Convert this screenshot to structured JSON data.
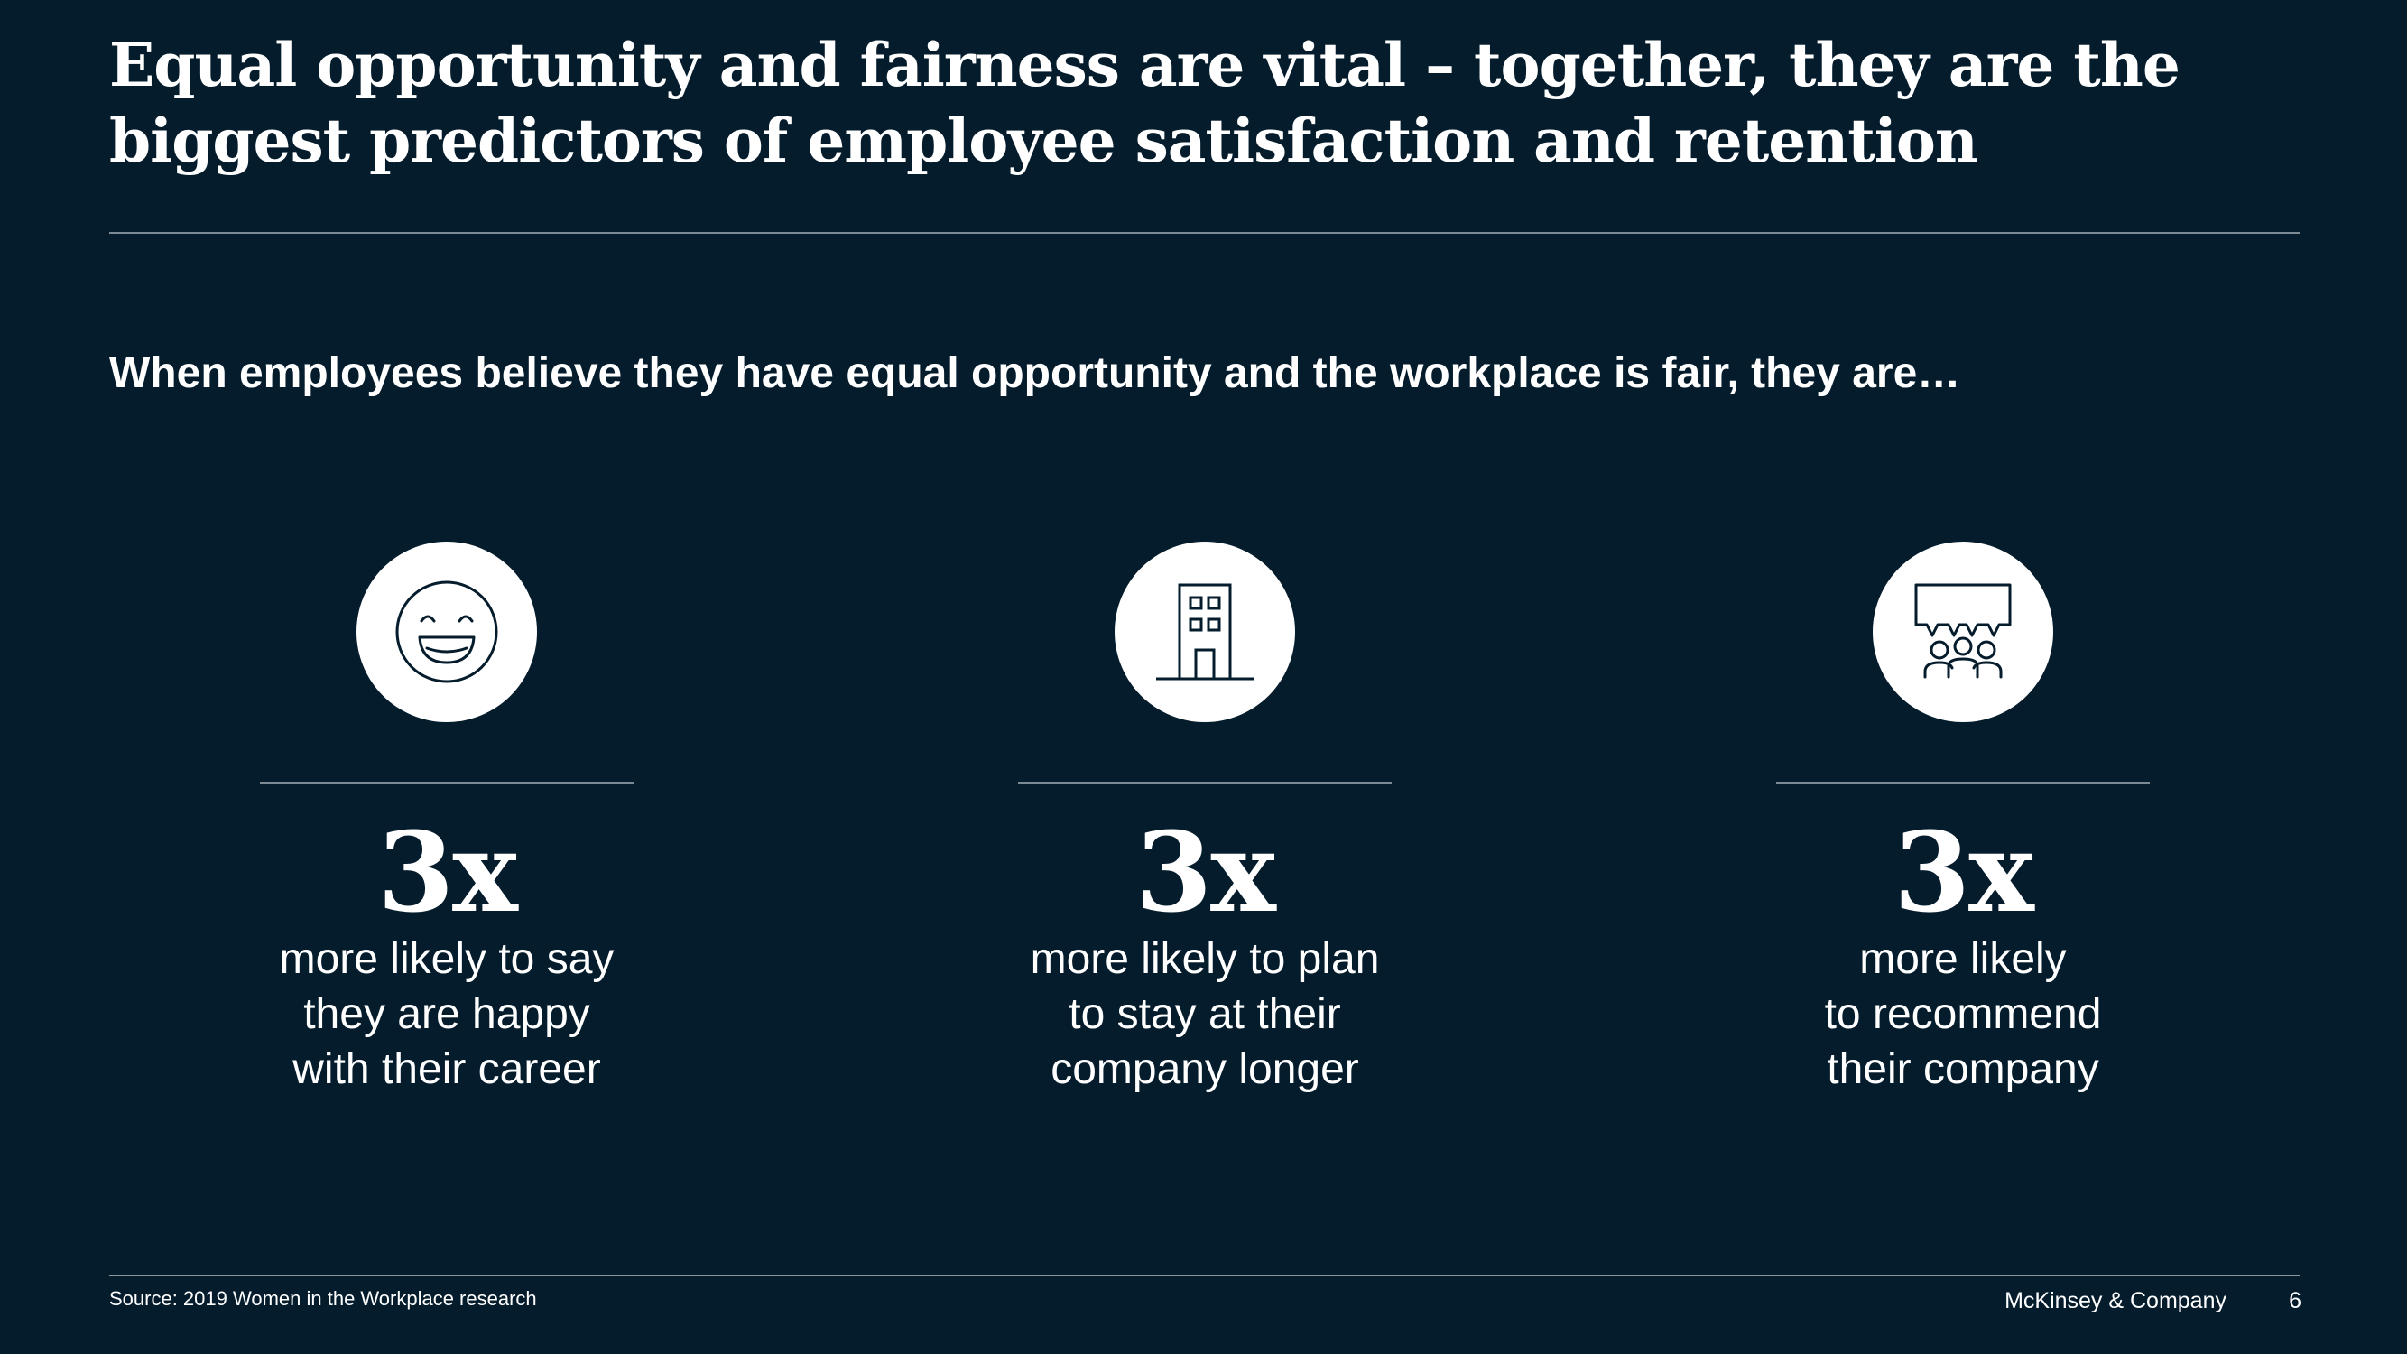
{
  "slide": {
    "title_lines": [
      "Equal opportunity and fairness are vital – together, they are the",
      "biggest predictors of employee satisfaction and retention"
    ],
    "subtitle": "When employees believe they have equal opportunity and the workplace is fair, they are…",
    "stats": [
      {
        "icon": "smiley-face-icon",
        "multiplier": "3x",
        "lines": [
          "more likely to say",
          "they are happy",
          "with their career"
        ]
      },
      {
        "icon": "office-building-icon",
        "multiplier": "3x",
        "lines": [
          "more likely to plan",
          "to stay at their",
          "company longer"
        ]
      },
      {
        "icon": "group-speech-bubble-icon",
        "multiplier": "3x",
        "lines": [
          "more likely",
          "to recommend",
          "their company"
        ]
      }
    ]
  },
  "footer": {
    "source": "Source: 2019 Women in the Workplace research",
    "brand": "McKinsey & Company",
    "page_number": "6"
  },
  "colors": {
    "background": "#051c2c",
    "text": "#ffffff",
    "icon_stroke": "#051c2c",
    "rule": "#7c8a94"
  }
}
